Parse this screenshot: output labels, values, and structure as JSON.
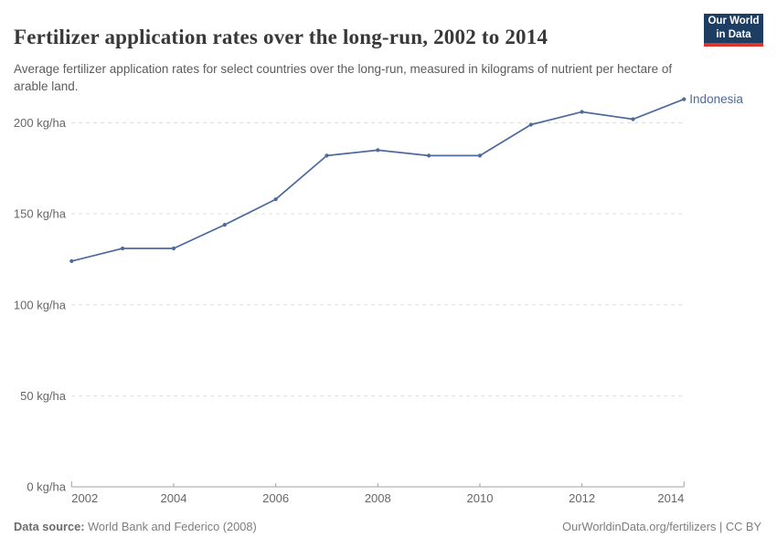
{
  "header": {
    "title": "Fertilizer application rates over the long-run, 2002 to 2014",
    "subtitle": "Average fertilizer application rates for select countries over the long-run, measured in kilograms of nutrient per hectare of arable land.",
    "logo": {
      "line1": "Our World",
      "line2": "in Data"
    }
  },
  "chart_data": {
    "type": "line",
    "title": "Fertilizer application rates over the long-run, 2002 to 2014",
    "x": [
      2002,
      2003,
      2004,
      2005,
      2006,
      2007,
      2008,
      2009,
      2010,
      2011,
      2012,
      2013,
      2014
    ],
    "series": [
      {
        "name": "Indonesia",
        "color": "#4C6A9C",
        "values": [
          124,
          131,
          131,
          144,
          158,
          182,
          185,
          182,
          182,
          199,
          206,
          202,
          213
        ]
      }
    ],
    "xlabel": "",
    "ylabel": "kg/ha",
    "ylim": [
      0,
      200
    ],
    "yticks": [
      0,
      50,
      100,
      150,
      200
    ],
    "ytick_suffix": " kg/ha",
    "xticks": [
      2002,
      2004,
      2006,
      2008,
      2010,
      2012,
      2014
    ],
    "grid": "horizontal-dashed",
    "legend": "line-end-label"
  },
  "footer": {
    "source_label": "Data source:",
    "source_text": " World Bank and Federico (2008)",
    "credit": "OurWorldinData.org/fertilizers | CC BY"
  },
  "colors": {
    "line": "#4C6A9C",
    "gridline": "#dddddd",
    "axis": "#a1a1a1",
    "tick_label": "#666666",
    "logo_bg": "#1d3d63",
    "logo_accent": "#dc352c"
  }
}
